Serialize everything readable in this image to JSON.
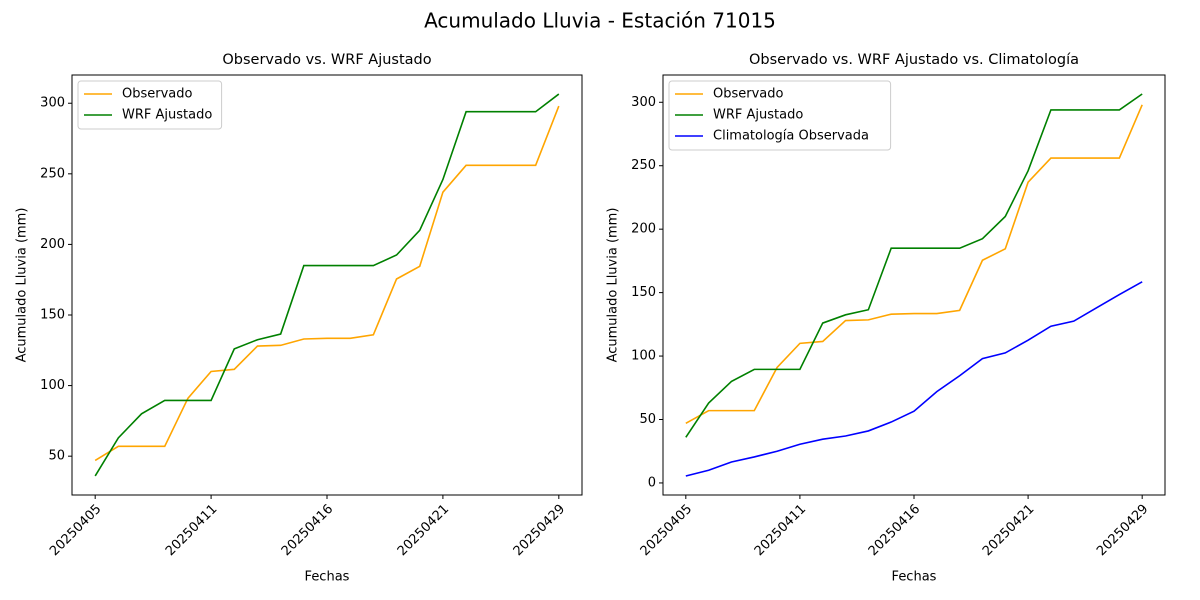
{
  "title": "Acumulado Lluvia - Estación 71015",
  "chart_data": [
    {
      "type": "line",
      "title": "Observado vs. WRF Ajustado",
      "xlabel": "Fechas",
      "ylabel": "Acumulado Lluvia (mm)",
      "categories": [
        "20250405",
        null,
        null,
        null,
        null,
        "20250411",
        null,
        null,
        null,
        null,
        "20250416",
        null,
        null,
        null,
        null,
        "20250421",
        null,
        null,
        null,
        null,
        "20250429"
      ],
      "series": [
        {
          "name": "Observado",
          "color": "#ffa500",
          "values": [
            47,
            57,
            57,
            57,
            91,
            110,
            111.5,
            128,
            128.5,
            133,
            133.5,
            133.5,
            136,
            175.5,
            184.5,
            237,
            256,
            256,
            256,
            256,
            298
          ]
        },
        {
          "name": "WRF Ajustado",
          "color": "#008000",
          "values": [
            36,
            63,
            80,
            89.5,
            89.5,
            89.5,
            126,
            132.5,
            136.5,
            185,
            185,
            185,
            185,
            192.5,
            210,
            246,
            294,
            294,
            294,
            294,
            306.5
          ]
        }
      ],
      "ylim": [
        22.5,
        320
      ],
      "yticks": [
        50,
        100,
        150,
        200,
        250,
        300
      ],
      "legend": "upper left"
    },
    {
      "type": "line",
      "title": "Observado vs. WRF Ajustado vs. Climatología",
      "xlabel": "Fechas",
      "ylabel": "Acumulado Lluvia (mm)",
      "categories": [
        "20250405",
        null,
        null,
        null,
        null,
        "20250411",
        null,
        null,
        null,
        null,
        "20250416",
        null,
        null,
        null,
        null,
        "20250421",
        null,
        null,
        null,
        null,
        "20250429"
      ],
      "series": [
        {
          "name": "Observado",
          "color": "#ffa500",
          "values": [
            47,
            57,
            57,
            57,
            91,
            110,
            111.5,
            128,
            128.5,
            133,
            133.5,
            133.5,
            136,
            175.5,
            184.5,
            237,
            256,
            256,
            256,
            256,
            298
          ]
        },
        {
          "name": "WRF Ajustado",
          "color": "#008000",
          "values": [
            36,
            63,
            80,
            89.5,
            89.5,
            89.5,
            126,
            132.5,
            136.5,
            185,
            185,
            185,
            185,
            192.5,
            210,
            246,
            294,
            294,
            294,
            294,
            306.5
          ]
        },
        {
          "name": "Climatología Observada",
          "color": "#0000ff",
          "values": [
            5.5,
            10,
            16.5,
            20.5,
            25,
            30.5,
            34.5,
            37,
            41,
            48,
            56.5,
            72,
            84.5,
            98,
            102.5,
            112.5,
            123.5,
            127.5,
            138,
            148.5,
            158.5
          ]
        }
      ],
      "ylim": [
        -9.5,
        321.5
      ],
      "yticks": [
        0,
        50,
        100,
        150,
        200,
        250,
        300
      ],
      "legend": "upper left"
    }
  ]
}
